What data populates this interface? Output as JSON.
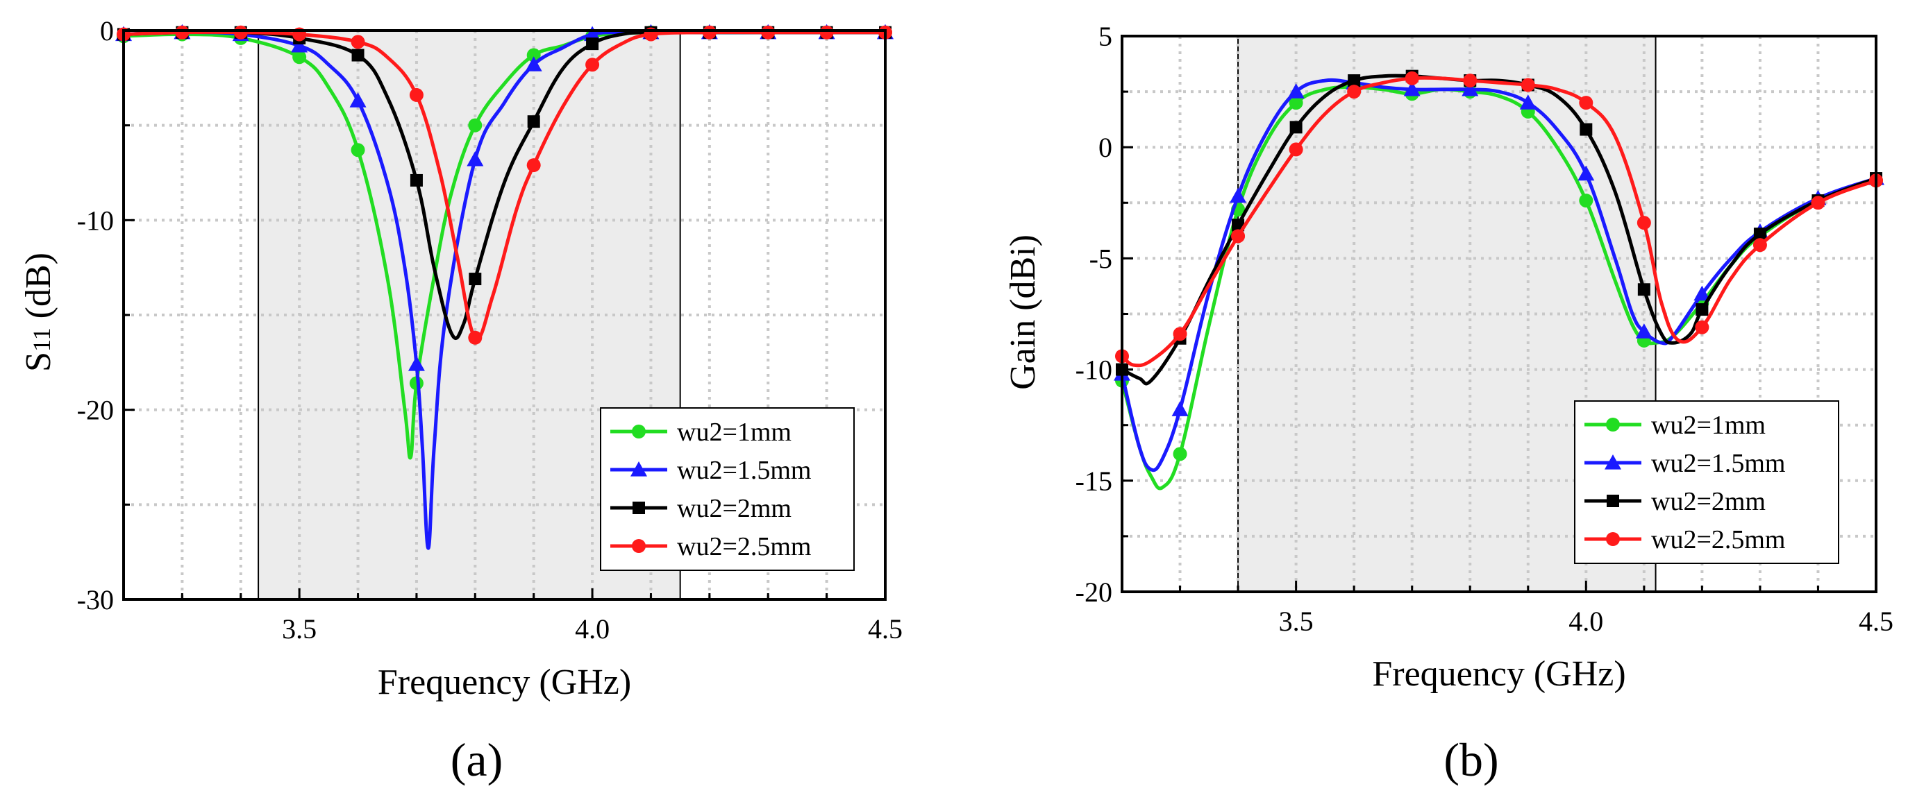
{
  "chart_data": [
    {
      "type": "line",
      "panel_label": "(a)",
      "xlabel": "Frequency (GHz)",
      "ylabel": "S11 (dB)",
      "ylabel_main": "S",
      "ylabel_sub": "11",
      "ylabel_rest": " (dB)",
      "xlim": [
        3.2,
        4.5
      ],
      "ylim": [
        -30,
        0
      ],
      "xticks": [
        3.5,
        4.0,
        4.5
      ],
      "xtick_labels": [
        "3.5",
        "4.0",
        "4.5"
      ],
      "yticks": [
        0,
        -10,
        -20,
        -30
      ],
      "ytick_labels": [
        "0",
        "-10",
        "-20",
        "-30"
      ],
      "grid": true,
      "shaded_band": [
        3.43,
        4.15
      ],
      "legend_position": "lower-right",
      "series": [
        {
          "name": "wu2=1mm",
          "color": "#22dd22",
          "marker": "circle",
          "x": [
            3.2,
            3.3,
            3.4,
            3.5,
            3.55,
            3.6,
            3.65,
            3.68,
            3.69,
            3.7,
            3.73,
            3.76,
            3.8,
            3.85,
            3.9,
            3.95,
            4.0,
            4.05,
            4.1,
            4.2,
            4.3,
            4.4,
            4.5
          ],
          "y": [
            -0.3,
            -0.2,
            -0.4,
            -1.4,
            -3.0,
            -6.3,
            -13.0,
            -20.0,
            -22.5,
            -18.6,
            -13.0,
            -8.5,
            -5.0,
            -2.8,
            -1.3,
            -0.8,
            -0.3,
            -0.15,
            -0.1,
            -0.1,
            -0.1,
            -0.1,
            -0.1
          ],
          "markers_x": [
            3.2,
            3.3,
            3.4,
            3.5,
            3.6,
            3.7,
            3.8,
            3.9,
            4.0,
            4.1,
            4.2,
            4.3,
            4.4,
            4.5
          ]
        },
        {
          "name": "wu2=1.5mm",
          "color": "#1a1aff",
          "marker": "triangle",
          "x": [
            3.2,
            3.3,
            3.4,
            3.5,
            3.55,
            3.6,
            3.65,
            3.68,
            3.7,
            3.71,
            3.72,
            3.73,
            3.75,
            3.8,
            3.85,
            3.9,
            3.95,
            4.0,
            4.05,
            4.1,
            4.2,
            4.3,
            4.4,
            4.5
          ],
          "y": [
            -0.2,
            -0.1,
            -0.2,
            -0.8,
            -1.8,
            -3.7,
            -8.0,
            -12.5,
            -17.6,
            -22.0,
            -27.3,
            -22.0,
            -15.0,
            -6.8,
            -3.8,
            -1.8,
            -0.9,
            -0.2,
            -0.1,
            -0.1,
            -0.1,
            -0.1,
            -0.1,
            -0.1
          ],
          "markers_x": [
            3.2,
            3.3,
            3.4,
            3.5,
            3.6,
            3.7,
            3.8,
            3.9,
            4.0,
            4.1,
            4.2,
            4.3,
            4.4,
            4.5
          ]
        },
        {
          "name": "wu2=2mm",
          "color": "#000000",
          "marker": "square",
          "x": [
            3.2,
            3.3,
            3.4,
            3.5,
            3.6,
            3.65,
            3.7,
            3.73,
            3.76,
            3.78,
            3.8,
            3.85,
            3.9,
            3.95,
            4.0,
            4.05,
            4.1,
            4.2,
            4.3,
            4.4,
            4.5
          ],
          "y": [
            -0.2,
            -0.1,
            -0.1,
            -0.4,
            -1.3,
            -3.5,
            -7.9,
            -12.5,
            -16.0,
            -15.5,
            -13.1,
            -8.0,
            -4.8,
            -2.0,
            -0.7,
            -0.2,
            -0.1,
            -0.1,
            -0.1,
            -0.1,
            -0.1
          ],
          "markers_x": [
            3.2,
            3.3,
            3.4,
            3.5,
            3.6,
            3.7,
            3.8,
            3.9,
            4.0,
            4.1,
            4.2,
            4.3,
            4.4,
            4.5
          ]
        },
        {
          "name": "wu2=2.5mm",
          "color": "#ff1a1a",
          "marker": "circle",
          "x": [
            3.2,
            3.3,
            3.4,
            3.5,
            3.6,
            3.65,
            3.7,
            3.74,
            3.77,
            3.8,
            3.83,
            3.87,
            3.9,
            3.95,
            4.0,
            4.05,
            4.1,
            4.2,
            4.3,
            4.4,
            4.5
          ],
          "y": [
            -0.2,
            -0.1,
            -0.1,
            -0.2,
            -0.6,
            -1.4,
            -3.4,
            -7.5,
            -12.0,
            -16.2,
            -14.0,
            -9.5,
            -7.1,
            -4.0,
            -1.8,
            -0.7,
            -0.2,
            -0.1,
            -0.1,
            -0.1,
            -0.1
          ],
          "markers_x": [
            3.2,
            3.3,
            3.4,
            3.5,
            3.6,
            3.7,
            3.8,
            3.9,
            4.0,
            4.1,
            4.2,
            4.3,
            4.4,
            4.5
          ]
        }
      ]
    },
    {
      "type": "line",
      "panel_label": "(b)",
      "xlabel": "Frequency (GHz)",
      "ylabel": "Gain (dBi)",
      "xlim": [
        3.2,
        4.5
      ],
      "ylim": [
        -20,
        5
      ],
      "xticks": [
        3.5,
        4.0,
        4.5
      ],
      "xtick_labels": [
        "3.5",
        "4.0",
        "4.5"
      ],
      "yticks": [
        5,
        0,
        -5,
        -10,
        -15,
        -20
      ],
      "ytick_labels": [
        "5",
        "0",
        "-5",
        "-10",
        "-15",
        "-20"
      ],
      "grid": true,
      "shaded_band": [
        3.4,
        4.12
      ],
      "legend_position": "lower-right",
      "series": [
        {
          "name": "wu2=1mm",
          "color": "#22dd22",
          "marker": "circle",
          "x": [
            3.2,
            3.23,
            3.25,
            3.27,
            3.3,
            3.35,
            3.4,
            3.45,
            3.5,
            3.55,
            3.6,
            3.65,
            3.7,
            3.75,
            3.8,
            3.85,
            3.9,
            3.95,
            4.0,
            4.05,
            4.08,
            4.1,
            4.12,
            4.15,
            4.2,
            4.25,
            4.3,
            4.4,
            4.5
          ],
          "y": [
            -10.5,
            -13.5,
            -14.8,
            -15.3,
            -13.8,
            -8.0,
            -2.8,
            0.3,
            2.0,
            2.6,
            2.7,
            2.6,
            2.4,
            2.6,
            2.5,
            2.3,
            1.6,
            0.0,
            -2.4,
            -6.0,
            -8.0,
            -8.7,
            -8.8,
            -8.5,
            -7.0,
            -5.3,
            -4.0,
            -2.4,
            -1.5
          ],
          "markers_x": [
            3.2,
            3.3,
            3.4,
            3.5,
            3.6,
            3.7,
            3.8,
            3.9,
            4.0,
            4.1,
            4.2,
            4.3,
            4.4,
            4.5
          ]
        },
        {
          "name": "wu2=1.5mm",
          "color": "#1a1aff",
          "marker": "triangle",
          "x": [
            3.2,
            3.23,
            3.25,
            3.27,
            3.3,
            3.35,
            3.4,
            3.45,
            3.5,
            3.55,
            3.6,
            3.65,
            3.7,
            3.75,
            3.8,
            3.85,
            3.9,
            3.95,
            4.0,
            4.05,
            4.08,
            4.1,
            4.13,
            4.15,
            4.2,
            4.25,
            4.3,
            4.4,
            4.5
          ],
          "y": [
            -10.2,
            -13.5,
            -14.5,
            -14.0,
            -11.8,
            -6.5,
            -2.2,
            0.7,
            2.5,
            3.0,
            2.9,
            2.7,
            2.6,
            2.6,
            2.6,
            2.5,
            2.0,
            0.8,
            -1.2,
            -5.0,
            -7.5,
            -8.3,
            -8.8,
            -8.5,
            -6.6,
            -5.0,
            -3.8,
            -2.3,
            -1.4
          ],
          "markers_x": [
            3.2,
            3.3,
            3.4,
            3.5,
            3.6,
            3.7,
            3.8,
            3.9,
            4.0,
            4.1,
            4.2,
            4.3,
            4.4,
            4.5
          ]
        },
        {
          "name": "wu2=2mm",
          "color": "#000000",
          "marker": "square",
          "x": [
            3.2,
            3.23,
            3.25,
            3.3,
            3.35,
            3.4,
            3.45,
            3.5,
            3.55,
            3.6,
            3.65,
            3.7,
            3.75,
            3.8,
            3.85,
            3.9,
            3.95,
            4.0,
            4.05,
            4.1,
            4.13,
            4.15,
            4.18,
            4.2,
            4.25,
            4.3,
            4.4,
            4.5
          ],
          "y": [
            -10.0,
            -10.4,
            -10.5,
            -8.6,
            -6.0,
            -3.5,
            -1.2,
            0.9,
            2.3,
            3.0,
            3.2,
            3.2,
            3.1,
            3.0,
            3.0,
            2.8,
            2.3,
            0.8,
            -2.0,
            -6.4,
            -8.4,
            -8.8,
            -8.4,
            -7.3,
            -5.3,
            -3.9,
            -2.4,
            -1.4
          ],
          "markers_x": [
            3.2,
            3.3,
            3.4,
            3.5,
            3.6,
            3.7,
            3.8,
            3.9,
            4.0,
            4.1,
            4.2,
            4.3,
            4.4,
            4.5
          ]
        },
        {
          "name": "wu2=2.5mm",
          "color": "#ff1a1a",
          "marker": "circle",
          "x": [
            3.2,
            3.22,
            3.25,
            3.3,
            3.35,
            3.4,
            3.45,
            3.5,
            3.55,
            3.6,
            3.65,
            3.7,
            3.75,
            3.8,
            3.85,
            3.9,
            3.95,
            4.0,
            4.05,
            4.1,
            4.13,
            4.16,
            4.2,
            4.25,
            4.3,
            4.4,
            4.5
          ],
          "y": [
            -9.4,
            -9.8,
            -9.6,
            -8.4,
            -6.2,
            -4.0,
            -2.0,
            -0.1,
            1.5,
            2.5,
            2.9,
            3.1,
            3.1,
            3.0,
            2.9,
            2.8,
            2.6,
            2.0,
            0.5,
            -3.4,
            -7.0,
            -8.7,
            -8.1,
            -5.9,
            -4.4,
            -2.5,
            -1.5
          ],
          "markers_x": [
            3.2,
            3.3,
            3.4,
            3.5,
            3.6,
            3.7,
            3.8,
            3.9,
            4.0,
            4.1,
            4.2,
            4.3,
            4.4,
            4.5
          ]
        }
      ]
    }
  ]
}
